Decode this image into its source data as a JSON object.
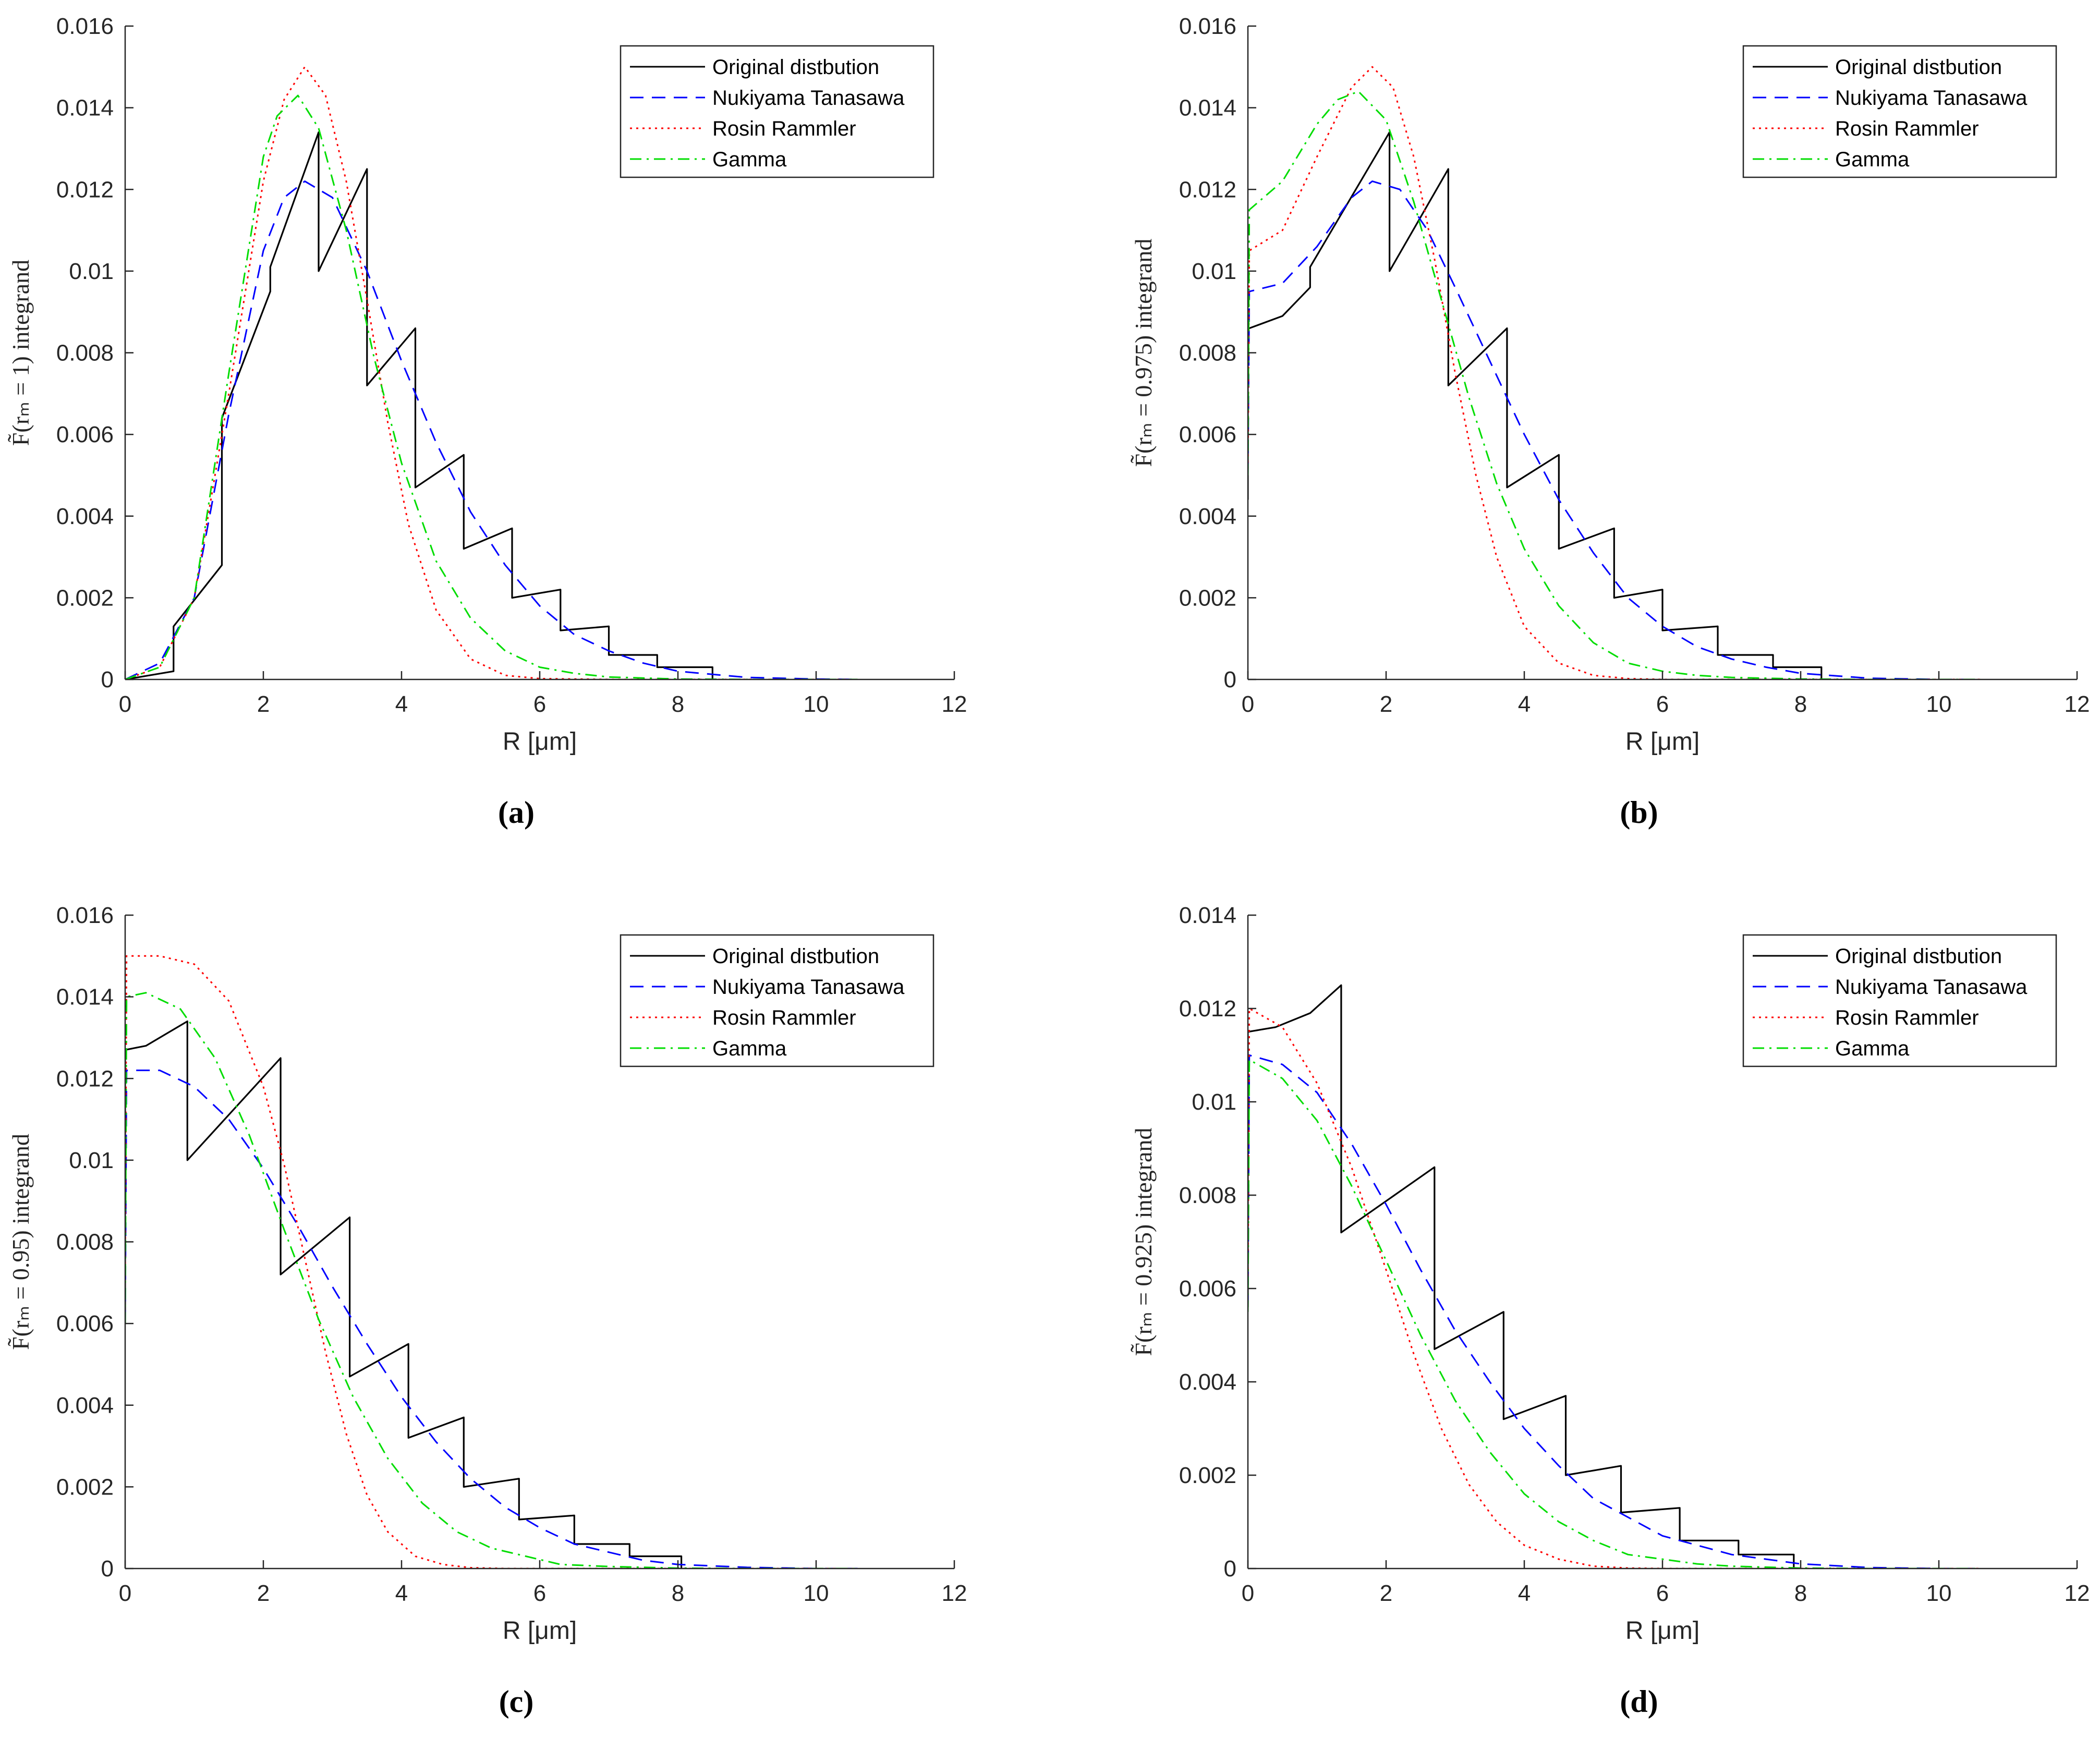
{
  "colors": {
    "original": "#000000",
    "nukiyama": "#0000ff",
    "rosin": "#ff0000",
    "gamma": "#00dd00",
    "axis": "#262626"
  },
  "chart_data": [
    {
      "type": "line",
      "panel": "(a)",
      "xlabel": "R [μm]",
      "ylabel": "F̃(rₘ = 1) integrand",
      "xlim": [
        0,
        12
      ],
      "ylim": [
        0,
        0.016
      ],
      "xticks": [
        "0",
        "2",
        "4",
        "6",
        "8",
        "10",
        "12"
      ],
      "yticks": [
        "0",
        "0.002",
        "0.004",
        "0.006",
        "0.008",
        "0.01",
        "0.012",
        "0.014",
        "0.016"
      ],
      "legend_position": "top-right",
      "series": [
        {
          "name": "Original distbution",
          "style": "solid",
          "x": [
            0,
            0.7,
            0.7,
            1.4,
            1.4,
            2.1,
            2.1,
            2.8,
            2.8,
            3.5,
            3.5,
            4.2,
            4.2,
            4.9,
            4.9,
            5.6,
            5.6,
            6.3,
            6.3,
            7.0,
            7.0,
            7.7,
            7.7,
            8.5,
            8.5
          ],
          "y": [
            0,
            0.0002,
            0.0013,
            0.0028,
            0.0064,
            0.0095,
            0.0101,
            0.0134,
            0.01,
            0.0125,
            0.0072,
            0.0086,
            0.0047,
            0.0055,
            0.0032,
            0.0037,
            0.002,
            0.0022,
            0.0012,
            0.0013,
            0.0006,
            0.0006,
            0.0003,
            0.0003,
            0
          ]
        },
        {
          "name": "Nukiyama Tanasawa",
          "style": "dashed",
          "x": [
            0,
            0.5,
            1,
            1.5,
            2,
            2.3,
            2.6,
            3,
            3.5,
            4,
            4.5,
            5,
            5.5,
            6,
            6.5,
            7,
            7.5,
            8,
            9,
            10,
            10.6
          ],
          "y": [
            0,
            0.0004,
            0.002,
            0.0065,
            0.0105,
            0.0118,
            0.0122,
            0.0118,
            0.01,
            0.0078,
            0.0058,
            0.0041,
            0.0028,
            0.0018,
            0.0011,
            0.0007,
            0.0004,
            0.0002,
            5e-05,
            1e-05,
            0
          ]
        },
        {
          "name": "Rosin Rammler",
          "style": "dotted",
          "x": [
            0,
            0.5,
            1,
            1.5,
            2,
            2.3,
            2.6,
            2.9,
            3.2,
            3.5,
            3.8,
            4.1,
            4.5,
            5,
            5.5,
            6,
            7,
            8,
            10.6
          ],
          "y": [
            0,
            0.0003,
            0.002,
            0.007,
            0.0122,
            0.0142,
            0.015,
            0.0143,
            0.0122,
            0.0093,
            0.0063,
            0.0038,
            0.0017,
            0.0005,
            0.0001,
            2e-05,
            0,
            0,
            0
          ]
        },
        {
          "name": "Gamma",
          "style": "dashdot",
          "x": [
            0,
            0.5,
            1,
            1.5,
            2,
            2.2,
            2.5,
            2.8,
            3.2,
            3.6,
            4,
            4.5,
            5,
            5.5,
            6,
            6.5,
            7,
            8,
            9,
            10.6
          ],
          "y": [
            0,
            0.0003,
            0.002,
            0.0075,
            0.0128,
            0.0138,
            0.0143,
            0.0135,
            0.011,
            0.0079,
            0.0053,
            0.0029,
            0.0015,
            0.0007,
            0.0003,
            0.00015,
            6e-05,
            1e-05,
            0,
            0
          ]
        }
      ]
    },
    {
      "type": "line",
      "panel": "(b)",
      "xlabel": "R [μm]",
      "ylabel": "F̃(rₘ = 0.975) integrand",
      "xlim": [
        0,
        12
      ],
      "ylim": [
        0,
        0.016
      ],
      "xticks": [
        "0",
        "2",
        "4",
        "6",
        "8",
        "10",
        "12"
      ],
      "yticks": [
        "0",
        "0.002",
        "0.004",
        "0.006",
        "0.008",
        "0.01",
        "0.012",
        "0.014",
        "0.016"
      ],
      "legend_position": "top-right",
      "series": [
        {
          "name": "Original distbution",
          "style": "solid",
          "x": [
            0,
            0,
            0.02,
            0.5,
            0.9,
            0.9,
            2.05,
            2.05,
            2.9,
            2.9,
            3.75,
            3.75,
            4.5,
            4.5,
            5.3,
            5.3,
            6.0,
            6.0,
            6.8,
            6.8,
            7.6,
            7.6,
            8.3,
            8.3
          ],
          "y": [
            0.0044,
            0.0086,
            0.0086,
            0.0089,
            0.0096,
            0.0101,
            0.0134,
            0.01,
            0.0125,
            0.0072,
            0.0086,
            0.0047,
            0.0055,
            0.0032,
            0.0037,
            0.002,
            0.0022,
            0.0012,
            0.0013,
            0.0006,
            0.0006,
            0.0003,
            0.0003,
            0
          ]
        },
        {
          "name": "Nukiyama Tanasawa",
          "style": "dashed",
          "x": [
            0,
            0.02,
            0.5,
            1,
            1.5,
            1.8,
            2.2,
            2.6,
            3,
            3.5,
            4,
            4.5,
            5,
            5.5,
            6,
            6.5,
            7,
            7.5,
            8,
            9,
            10,
            10.6
          ],
          "y": [
            0.005,
            0.0095,
            0.0097,
            0.0106,
            0.0118,
            0.0122,
            0.012,
            0.011,
            0.0096,
            0.0078,
            0.006,
            0.0044,
            0.0031,
            0.002,
            0.0013,
            0.0008,
            0.0005,
            0.0003,
            0.00015,
            3e-05,
            0,
            0
          ]
        },
        {
          "name": "Rosin Rammler",
          "style": "dotted",
          "x": [
            0,
            0.02,
            0.5,
            1,
            1.5,
            1.8,
            2.1,
            2.4,
            2.7,
            3,
            3.3,
            3.6,
            4,
            4.5,
            5,
            5.5,
            6,
            7,
            10.6
          ],
          "y": [
            0.005,
            0.0105,
            0.011,
            0.0128,
            0.0145,
            0.015,
            0.0145,
            0.0128,
            0.0103,
            0.0075,
            0.005,
            0.003,
            0.0013,
            0.0004,
            0.0001,
            2e-05,
            0,
            0,
            0
          ]
        },
        {
          "name": "Gamma",
          "style": "dashdot",
          "x": [
            0,
            0.02,
            0.5,
            1,
            1.3,
            1.6,
            2,
            2.4,
            2.8,
            3.2,
            3.6,
            4,
            4.5,
            5,
            5.5,
            6,
            6.5,
            7,
            8,
            9,
            10.6
          ],
          "y": [
            0.005,
            0.0115,
            0.0122,
            0.0136,
            0.0142,
            0.0144,
            0.0137,
            0.0117,
            0.0093,
            0.0069,
            0.0048,
            0.0032,
            0.0018,
            0.0009,
            0.0004,
            0.0002,
            0.0001,
            5e-05,
            1e-05,
            0,
            0
          ]
        }
      ]
    },
    {
      "type": "line",
      "panel": "(c)",
      "xlabel": "R [μm]",
      "ylabel": "F̃(rₘ = 0.95) integrand",
      "xlim": [
        0,
        12
      ],
      "ylim": [
        0,
        0.016
      ],
      "xticks": [
        "0",
        "2",
        "4",
        "6",
        "8",
        "10",
        "12"
      ],
      "yticks": [
        "0",
        "0.002",
        "0.004",
        "0.006",
        "0.008",
        "0.01",
        "0.012",
        "0.014",
        "0.016"
      ],
      "legend_position": "top-right",
      "series": [
        {
          "name": "Original distbution",
          "style": "solid",
          "x": [
            0,
            0,
            0.3,
            0.6,
            0.9,
            0.9,
            2.25,
            2.25,
            3.25,
            3.25,
            4.1,
            4.1,
            4.9,
            4.9,
            5.7,
            5.7,
            6.5,
            6.5,
            7.3,
            7.3,
            8.05,
            8.05
          ],
          "y": [
            0.006,
            0.0127,
            0.0128,
            0.0131,
            0.0134,
            0.01,
            0.0125,
            0.0072,
            0.0086,
            0.0047,
            0.0055,
            0.0032,
            0.0037,
            0.002,
            0.0022,
            0.0012,
            0.0013,
            0.0006,
            0.0006,
            0.0003,
            0.0003,
            0
          ]
        },
        {
          "name": "Nukiyama Tanasawa",
          "style": "dashed",
          "x": [
            0,
            0.02,
            0.5,
            1,
            1.5,
            2,
            2.5,
            3,
            3.5,
            4,
            4.5,
            5,
            5.5,
            6,
            6.5,
            7,
            7.5,
            8,
            9,
            10,
            10.6
          ],
          "y": [
            0.006,
            0.0122,
            0.0122,
            0.0118,
            0.011,
            0.0098,
            0.0084,
            0.0069,
            0.0055,
            0.0042,
            0.0031,
            0.0022,
            0.0015,
            0.001,
            0.0006,
            0.0004,
            0.0002,
            0.0001,
            3e-05,
            0,
            0
          ]
        },
        {
          "name": "Rosin Rammler",
          "style": "dotted",
          "x": [
            0,
            0.02,
            0.5,
            1,
            1.5,
            2,
            2.3,
            2.6,
            2.9,
            3.2,
            3.5,
            3.8,
            4.2,
            4.6,
            5,
            5.5,
            6,
            7,
            10.6
          ],
          "y": [
            0.007,
            0.015,
            0.015,
            0.0148,
            0.0139,
            0.0118,
            0.0099,
            0.0076,
            0.0053,
            0.0033,
            0.0018,
            0.0009,
            0.0003,
            0.0001,
            2e-05,
            0,
            0,
            0,
            0
          ]
        },
        {
          "name": "Gamma",
          "style": "dashdot",
          "x": [
            0,
            0.02,
            0.3,
            0.8,
            1.3,
            1.8,
            2.3,
            2.8,
            3.3,
            3.8,
            4.3,
            4.8,
            5.3,
            5.8,
            6.3,
            7,
            8,
            9,
            10.6
          ],
          "y": [
            0.006,
            0.014,
            0.0141,
            0.0137,
            0.0125,
            0.0106,
            0.0083,
            0.0061,
            0.0042,
            0.0027,
            0.0016,
            0.0009,
            0.0005,
            0.0003,
            0.0001,
            5e-05,
            1e-05,
            0,
            0
          ]
        }
      ]
    },
    {
      "type": "line",
      "panel": "(d)",
      "xlabel": "R [μm]",
      "ylabel": "F̃(rₘ = 0.925) integrand",
      "xlim": [
        0,
        12
      ],
      "ylim": [
        0,
        0.014
      ],
      "xticks": [
        "0",
        "2",
        "4",
        "6",
        "8",
        "10",
        "12"
      ],
      "yticks": [
        "0",
        "0.002",
        "0.004",
        "0.006",
        "0.008",
        "0.01",
        "0.012",
        "0.014"
      ],
      "legend_position": "top-right",
      "series": [
        {
          "name": "Original distbution",
          "style": "solid",
          "x": [
            0,
            0,
            0.4,
            0.9,
            1.35,
            1.35,
            2.7,
            2.7,
            3.7,
            3.7,
            4.6,
            4.6,
            5.4,
            5.4,
            6.25,
            6.25,
            7.1,
            7.1,
            7.9,
            7.9
          ],
          "y": [
            0.0056,
            0.0115,
            0.0116,
            0.0119,
            0.0125,
            0.0072,
            0.0086,
            0.0047,
            0.0055,
            0.0032,
            0.0037,
            0.002,
            0.0022,
            0.0012,
            0.0013,
            0.0006,
            0.0006,
            0.0003,
            0.0003,
            0
          ]
        },
        {
          "name": "Nukiyama Tanasawa",
          "style": "dashed",
          "x": [
            0,
            0.02,
            0.5,
            1,
            1.5,
            2,
            2.5,
            3,
            3.5,
            4,
            4.5,
            5,
            5.5,
            6,
            6.5,
            7,
            7.5,
            8,
            9,
            10,
            10.6
          ],
          "y": [
            0.0056,
            0.011,
            0.0108,
            0.0102,
            0.0091,
            0.0078,
            0.0064,
            0.0051,
            0.004,
            0.003,
            0.0022,
            0.0015,
            0.0011,
            0.0007,
            0.0005,
            0.0003,
            0.0002,
            0.0001,
            2e-05,
            0,
            0
          ]
        },
        {
          "name": "Rosin Rammler",
          "style": "dotted",
          "x": [
            0,
            0.02,
            0.5,
            1,
            1.5,
            2,
            2.4,
            2.8,
            3.2,
            3.6,
            4,
            4.5,
            5,
            5.5,
            6,
            7,
            10.6
          ],
          "y": [
            0.006,
            0.012,
            0.0116,
            0.0104,
            0.0086,
            0.0064,
            0.0046,
            0.003,
            0.0018,
            0.001,
            0.0005,
            0.0002,
            5e-05,
            1e-05,
            0,
            0,
            0
          ]
        },
        {
          "name": "Gamma",
          "style": "dashdot",
          "x": [
            0,
            0.02,
            0.5,
            1,
            1.5,
            2,
            2.5,
            3,
            3.5,
            4,
            4.5,
            5,
            5.5,
            6,
            6.5,
            7,
            8,
            9,
            10.6
          ],
          "y": [
            0.0055,
            0.0109,
            0.0105,
            0.0096,
            0.0082,
            0.0066,
            0.005,
            0.0036,
            0.0025,
            0.0016,
            0.001,
            0.0006,
            0.0003,
            0.0002,
            0.0001,
            5e-05,
            1e-05,
            0,
            0
          ]
        }
      ]
    }
  ]
}
